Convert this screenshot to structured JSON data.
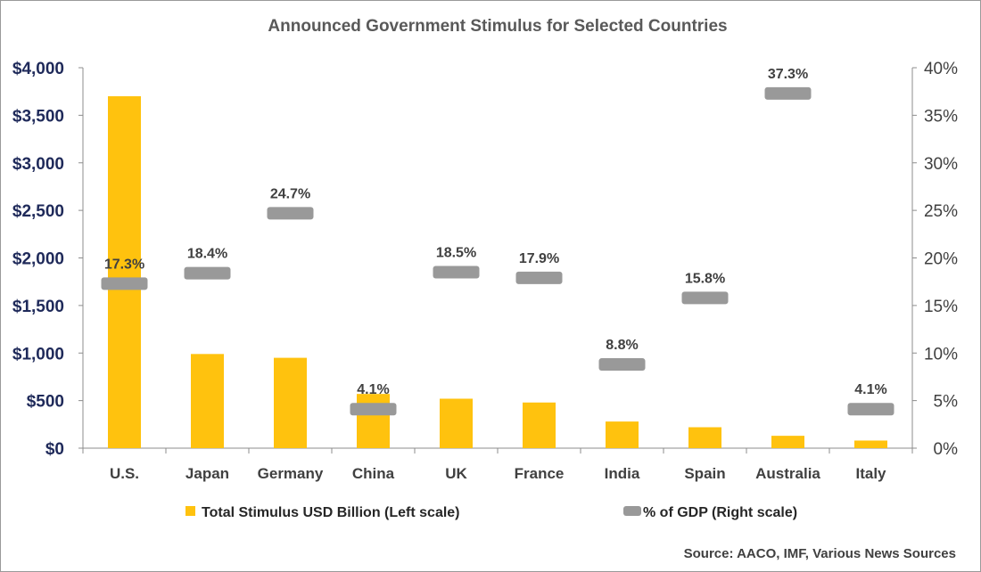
{
  "chart_data": {
    "type": "bar",
    "title": "Announced Government Stimulus for Selected Countries",
    "categories": [
      "U.S.",
      "Japan",
      "Germany",
      "China",
      "UK",
      "France",
      "India",
      "Spain",
      "Australia",
      "Italy"
    ],
    "series": [
      {
        "name": "Total Stimulus USD Billion (Left scale)",
        "type": "bar",
        "axis": "left",
        "color": "#FFC20E",
        "values": [
          3700,
          990,
          950,
          570,
          520,
          480,
          280,
          220,
          130,
          80
        ]
      },
      {
        "name": "% of GDP (Right scale)",
        "type": "marker",
        "axis": "right",
        "color": "#999999",
        "values": [
          17.3,
          18.4,
          24.7,
          4.1,
          18.5,
          17.9,
          8.8,
          15.8,
          37.3,
          4.1
        ],
        "labels": [
          "17.3%",
          "18.4%",
          "24.7%",
          "4.1%",
          "18.5%",
          "17.9%",
          "8.8%",
          "15.8%",
          "37.3%",
          "4.1%"
        ]
      }
    ],
    "y_left": {
      "ylim": [
        0,
        4000
      ],
      "ticks": [
        0,
        500,
        1000,
        1500,
        2000,
        2500,
        3000,
        3500,
        4000
      ],
      "tick_labels": [
        "$0",
        "$500",
        "$1,000",
        "$1,500",
        "$2,000",
        "$2,500",
        "$3,000",
        "$3,500",
        "$4,000"
      ]
    },
    "y_right": {
      "ylim": [
        0,
        40
      ],
      "ticks": [
        0,
        5,
        10,
        15,
        20,
        25,
        30,
        35,
        40
      ],
      "tick_labels": [
        "0%",
        "5%",
        "10%",
        "15%",
        "20%",
        "25%",
        "30%",
        "35%",
        "40%"
      ]
    },
    "grid": false,
    "legend_position": "bottom",
    "source": "Source: AACO, IMF,  Various News Sources"
  }
}
